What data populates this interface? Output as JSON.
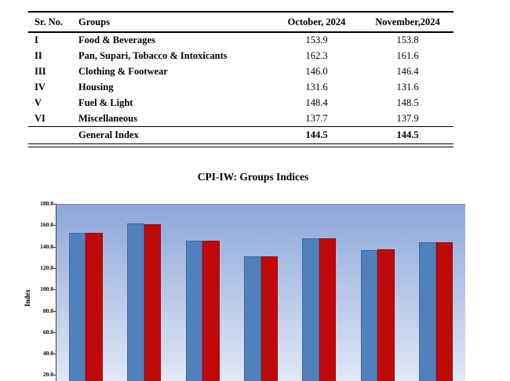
{
  "document": {
    "table": {
      "columns": [
        "Sr. No.",
        "Groups",
        "October, 2024",
        "November,2024"
      ],
      "rows": [
        {
          "sr_no": "I",
          "group": "Food & Beverages",
          "october": "153.9",
          "november": "153.8"
        },
        {
          "sr_no": "II",
          "group": "Pan, Supari, Tobacco & Intoxicants",
          "october": "162.3",
          "november": "161.6"
        },
        {
          "sr_no": "III",
          "group": "Clothing & Footwear",
          "october": "146.0",
          "november": "146.4"
        },
        {
          "sr_no": "IV",
          "group": "Housing",
          "october": "131.6",
          "november": "131.6"
        },
        {
          "sr_no": "V",
          "group": "Fuel & Light",
          "october": "148.4",
          "november": "148.5"
        },
        {
          "sr_no": "VI",
          "group": "Miscellaneous",
          "october": "137.7",
          "november": "137.9"
        }
      ],
      "footer_row": {
        "sr_no": "",
        "group": "General Index",
        "october": "144.5",
        "november": "144.5"
      }
    }
  },
  "chart_data": {
    "type": "bar",
    "title": "CPI-IW: Groups Indices",
    "xlabel": "",
    "ylabel": "Index",
    "ylim": [
      0,
      180
    ],
    "ytick_labels": [
      "180.0",
      "160.0",
      "140.0",
      "120.0",
      "100.0",
      "80.0",
      "60.0",
      "40.0",
      "20.0"
    ],
    "grid": false,
    "categories": [
      "Food & Beverages",
      "Pan, Supari, Tobacco & Intoxicants",
      "Clothing & Footwear",
      "Housing",
      "Fuel & Light",
      "Miscellaneous",
      "General Index"
    ],
    "series": [
      {
        "name": "October, 2024",
        "color": "#4f81bd",
        "values": [
          153.9,
          162.3,
          146.0,
          131.6,
          148.4,
          137.7,
          144.5
        ]
      },
      {
        "name": "November,2024",
        "color": "#c00a0a",
        "values": [
          153.8,
          161.6,
          146.4,
          131.6,
          148.5,
          137.9,
          144.5
        ]
      }
    ],
    "plot_gradient": [
      "#8da7d9",
      "#e9eef9"
    ],
    "layout_note": "x-axis category labels and bar bottoms are cut off at the bottom edge of the screenshot"
  }
}
